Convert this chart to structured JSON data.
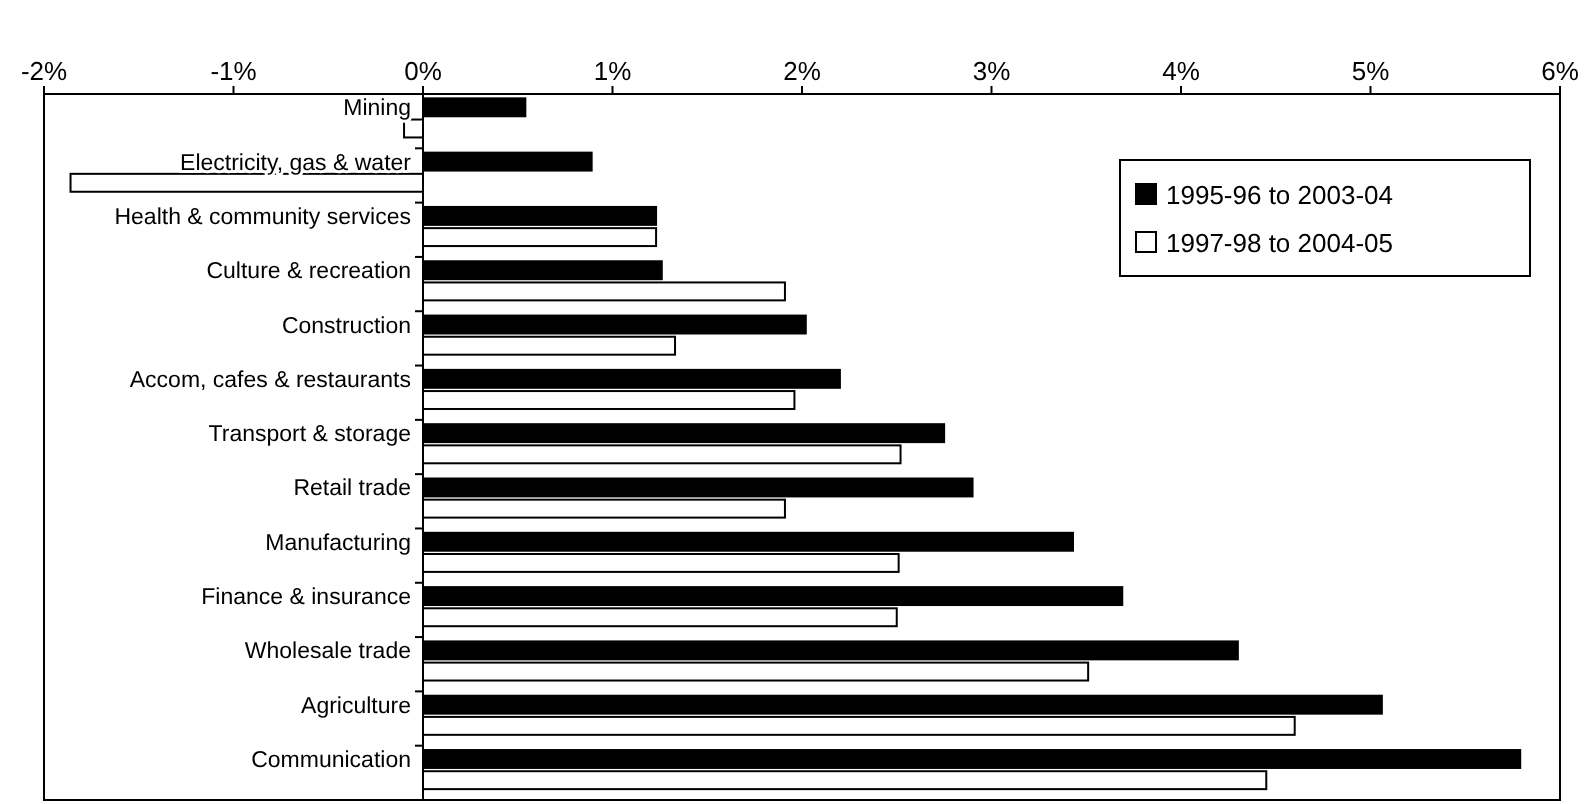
{
  "chart_data": {
    "type": "bar",
    "orientation": "horizontal",
    "categories": [
      "Mining",
      "Electricity, gas & water",
      "Health & community services",
      "Culture & recreation",
      "Construction",
      "Accom, cafes & restaurants",
      "Transport & storage",
      "Retail trade",
      "Manufacturing",
      "Finance & insurance",
      "Wholesale trade",
      "Agriculture",
      "Communication"
    ],
    "series": [
      {
        "name": "1995-96 to 2003-04",
        "color": "#000000",
        "values": [
          0.54,
          0.89,
          1.23,
          1.26,
          2.02,
          2.2,
          2.75,
          2.9,
          3.43,
          3.69,
          4.3,
          5.06,
          5.79
        ]
      },
      {
        "name": "1997-98 to 2004-05",
        "color": "#ffffff",
        "values": [
          -0.1,
          -1.86,
          1.23,
          1.91,
          1.33,
          1.96,
          2.52,
          1.91,
          2.51,
          2.5,
          3.51,
          4.6,
          4.45
        ]
      }
    ],
    "xlim": [
      -2,
      6
    ],
    "xticks": [
      {
        "value": -2,
        "label": "-2%"
      },
      {
        "value": -1,
        "label": "-1%"
      },
      {
        "value": 0,
        "label": "0%"
      },
      {
        "value": 1,
        "label": "1%"
      },
      {
        "value": 2,
        "label": "2%"
      },
      {
        "value": 3,
        "label": "3%"
      },
      {
        "value": 4,
        "label": "4%"
      },
      {
        "value": 5,
        "label": "5%"
      },
      {
        "value": 6,
        "label": "6%"
      }
    ],
    "grid": false,
    "legend": "top right"
  }
}
